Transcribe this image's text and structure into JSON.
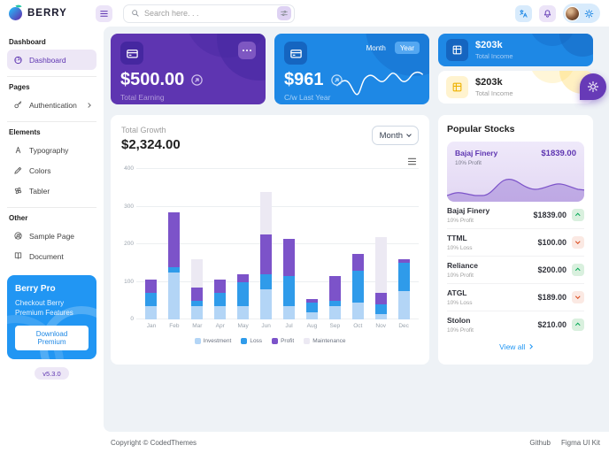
{
  "header": {
    "brand": "BERRY",
    "search_placeholder": "Search here. . ."
  },
  "sidebar": {
    "groups": [
      {
        "label": "Dashboard",
        "items": [
          {
            "label": "Dashboard"
          }
        ]
      },
      {
        "label": "Pages",
        "items": [
          {
            "label": "Authentication"
          }
        ]
      },
      {
        "label": "Elements",
        "items": [
          {
            "label": "Typography"
          },
          {
            "label": "Colors"
          },
          {
            "label": "Tabler"
          }
        ]
      },
      {
        "label": "Other",
        "items": [
          {
            "label": "Sample Page"
          },
          {
            "label": "Document"
          }
        ]
      }
    ],
    "promo": {
      "title": "Berry Pro",
      "subtitle": "Checkout Berry Premium Features",
      "button": "Download Premium"
    },
    "version": "v5.3.0"
  },
  "cards": {
    "earning": {
      "amount": "$500.00",
      "label": "Total Earning"
    },
    "order": {
      "amount": "$961",
      "label": "C/w Last Year",
      "toggles": [
        "Month",
        "Year"
      ],
      "active_toggle": "Year"
    },
    "income_primary": {
      "amount": "$203k",
      "label": "Total Income"
    },
    "income_warning": {
      "amount": "$203k",
      "label": "Total Income"
    }
  },
  "growth": {
    "title": "Total Growth",
    "amount": "$2,324.00",
    "period": "Month"
  },
  "chart_data": {
    "type": "bar",
    "stacked": true,
    "title": "Total Growth",
    "categories": [
      "Jan",
      "Feb",
      "Mar",
      "Apr",
      "May",
      "Jun",
      "Jul",
      "Aug",
      "Sep",
      "Oct",
      "Nov",
      "Dec"
    ],
    "series": [
      {
        "name": "Investment",
        "color": "#b3d5f6",
        "values": [
          35,
          125,
          35,
          35,
          35,
          80,
          35,
          20,
          35,
          45,
          15,
          75
        ]
      },
      {
        "name": "Loss",
        "color": "#2f9bea",
        "values": [
          35,
          15,
          15,
          35,
          65,
          40,
          80,
          25,
          15,
          85,
          25,
          75
        ]
      },
      {
        "name": "Profit",
        "color": "#7c53c9",
        "values": [
          35,
          145,
          35,
          35,
          20,
          105,
          100,
          10,
          65,
          45,
          30,
          10
        ]
      },
      {
        "name": "Maintenance",
        "color": "#ece9f3",
        "values": [
          0,
          0,
          75,
          0,
          0,
          115,
          0,
          0,
          0,
          0,
          150,
          0
        ]
      }
    ],
    "ylim": [
      0,
      400
    ],
    "yticks": [
      0,
      100,
      200,
      300,
      400
    ],
    "xlabel": "",
    "ylabel": "",
    "grid": true,
    "legend_position": "bottom"
  },
  "stocks": {
    "title": "Popular Stocks",
    "featured": {
      "name": "Bajaj Finery",
      "sub": "10% Profit",
      "price": "$1839.00"
    },
    "rows": [
      {
        "name": "Bajaj Finery",
        "sub": "10% Profit",
        "price": "$1839.00",
        "trend": "up"
      },
      {
        "name": "TTML",
        "sub": "10% Loss",
        "price": "$100.00",
        "trend": "down"
      },
      {
        "name": "Reliance",
        "sub": "10% Profit",
        "price": "$200.00",
        "trend": "up"
      },
      {
        "name": "ATGL",
        "sub": "10% Loss",
        "price": "$189.00",
        "trend": "down"
      },
      {
        "name": "Stolon",
        "sub": "10% Profit",
        "price": "$210.00",
        "trend": "up"
      }
    ],
    "view_all": "View all"
  },
  "footer": {
    "copyright": "Copyright © CodedThemes",
    "links": [
      "Github",
      "Figma UI Kit"
    ]
  },
  "colors": {
    "purple": "#5e35b1",
    "blue": "#1e88e5",
    "panel_bg": "#eef2f6",
    "success": "#00a854",
    "error": "#d84315",
    "warning": "#ffc107"
  }
}
